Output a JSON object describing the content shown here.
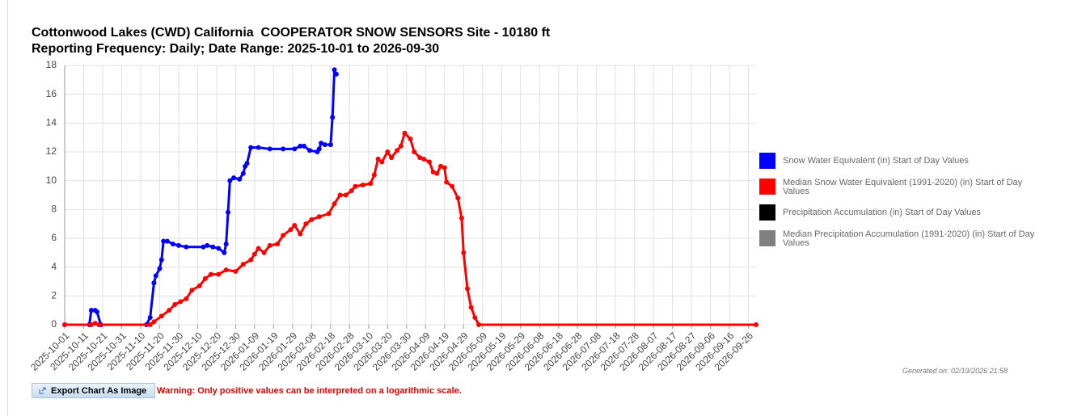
{
  "chart_data": {
    "type": "line",
    "title": "Cottonwood Lakes (CWD) California  COOPERATOR SNOW SENSORS Site - 10180 ft",
    "subtitle": "Reporting Frequency: Daily; Date Range: 2025-10-01 to 2026-09-30",
    "xlim": [
      "2025-10-01",
      "2026-09-30"
    ],
    "xticks": [
      "2025-10-01",
      "2025-10-11",
      "2025-10-21",
      "2025-10-31",
      "2025-11-10",
      "2025-11-20",
      "2025-11-30",
      "2025-12-10",
      "2025-12-20",
      "2025-12-30",
      "2026-01-09",
      "2026-01-19",
      "2026-01-29",
      "2026-02-08",
      "2026-02-18",
      "2026-02-28",
      "2026-03-10",
      "2026-03-20",
      "2026-03-30",
      "2026-04-09",
      "2026-04-19",
      "2026-04-29",
      "2026-05-09",
      "2026-05-19",
      "2026-05-29",
      "2026-06-08",
      "2026-06-18",
      "2026-06-28",
      "2026-07-08",
      "2026-07-18",
      "2026-07-28",
      "2026-08-07",
      "2026-08-17",
      "2026-08-27",
      "2026-09-06",
      "2026-09-16",
      "2026-09-26"
    ],
    "ylim": [
      0,
      18
    ],
    "yticks": [
      0,
      2,
      4,
      6,
      8,
      10,
      12,
      14,
      16,
      18
    ],
    "grid": true,
    "legend": "right",
    "series": [
      {
        "name": "Snow Water Equivalent (in) Start of Day Values",
        "color": "#0000ff",
        "x": [
          "2025-10-01",
          "2025-10-14",
          "2025-10-15",
          "2025-10-17",
          "2025-10-18",
          "2025-10-20",
          "2025-11-13",
          "2025-11-15",
          "2025-11-17",
          "2025-11-18",
          "2025-11-20",
          "2025-11-21",
          "2025-11-22",
          "2025-11-24",
          "2025-11-27",
          "2025-11-30",
          "2025-12-04",
          "2025-12-13",
          "2025-12-15",
          "2025-12-18",
          "2025-12-21",
          "2025-12-24",
          "2025-12-25",
          "2025-12-26",
          "2025-12-27",
          "2025-12-29",
          "2026-01-01",
          "2026-01-03",
          "2026-01-04",
          "2026-01-05",
          "2026-01-07",
          "2026-01-11",
          "2026-01-17",
          "2026-01-24",
          "2026-01-30",
          "2026-02-02",
          "2026-02-04",
          "2026-02-07",
          "2026-02-11",
          "2026-02-12",
          "2026-02-13",
          "2026-02-15",
          "2026-02-18",
          "2026-02-19",
          "2026-02-20",
          "2026-02-21"
        ],
        "values": [
          0,
          0,
          1.0,
          1.0,
          0.9,
          0,
          0,
          0.5,
          2.9,
          3.4,
          3.9,
          4.5,
          5.8,
          5.8,
          5.6,
          5.5,
          5.4,
          5.4,
          5.5,
          5.4,
          5.3,
          5.0,
          5.6,
          7.8,
          10.0,
          10.2,
          10.1,
          10.5,
          11.0,
          11.2,
          12.3,
          12.3,
          12.2,
          12.2,
          12.2,
          12.4,
          12.4,
          12.1,
          12.0,
          12.2,
          12.6,
          12.5,
          12.5,
          14.4,
          17.7,
          17.4
        ]
      },
      {
        "name": "Median Snow Water Equivalent (1991-2020) (in) Start of Day Values",
        "color": "#ff0000",
        "x": [
          "2025-10-01",
          "2025-10-15",
          "2025-10-17",
          "2025-10-19",
          "2025-11-15",
          "2025-11-17",
          "2025-11-21",
          "2025-11-25",
          "2025-11-28",
          "2025-12-01",
          "2025-12-04",
          "2025-12-07",
          "2025-12-11",
          "2025-12-14",
          "2025-12-17",
          "2025-12-21",
          "2025-12-25",
          "2025-12-30",
          "2026-01-03",
          "2026-01-07",
          "2026-01-09",
          "2026-01-11",
          "2026-01-14",
          "2026-01-17",
          "2026-01-21",
          "2026-01-24",
          "2026-01-28",
          "2026-01-30",
          "2026-02-02",
          "2026-02-05",
          "2026-02-08",
          "2026-02-12",
          "2026-02-17",
          "2026-02-20",
          "2026-02-23",
          "2026-02-26",
          "2026-03-01",
          "2026-03-03",
          "2026-03-07",
          "2026-03-11",
          "2026-03-13",
          "2026-03-15",
          "2026-03-17",
          "2026-03-20",
          "2026-03-22",
          "2026-03-25",
          "2026-03-27",
          "2026-03-29",
          "2026-04-01",
          "2026-04-03",
          "2026-04-06",
          "2026-04-08",
          "2026-04-11",
          "2026-04-13",
          "2026-04-15",
          "2026-04-17",
          "2026-04-19",
          "2026-04-20",
          "2026-04-23",
          "2026-04-26",
          "2026-04-28",
          "2026-04-29",
          "2026-05-01",
          "2026-05-03",
          "2026-05-05",
          "2026-05-07",
          "2026-09-30"
        ],
        "values": [
          0,
          0,
          0.1,
          0,
          0,
          0.2,
          0.6,
          1.0,
          1.4,
          1.6,
          1.8,
          2.4,
          2.7,
          3.2,
          3.5,
          3.5,
          3.8,
          3.7,
          4.2,
          4.5,
          4.9,
          5.3,
          5.0,
          5.5,
          5.6,
          6.2,
          6.6,
          6.9,
          6.3,
          7.0,
          7.3,
          7.5,
          7.7,
          8.4,
          9.0,
          9.0,
          9.3,
          9.6,
          9.7,
          9.8,
          10.4,
          11.5,
          11.3,
          12.0,
          11.6,
          12.1,
          12.4,
          13.3,
          12.9,
          12.0,
          11.6,
          11.5,
          11.3,
          10.6,
          10.5,
          11.0,
          10.9,
          9.9,
          9.6,
          8.8,
          7.4,
          5.0,
          2.5,
          1.2,
          0.5,
          0,
          0
        ]
      },
      {
        "name": "Precipitation Accumulation (in) Start of Day Values",
        "color": "#000000",
        "x": [],
        "values": []
      },
      {
        "name": "Median Precipitation Accumulation (1991-2020) (in) Start of Day Values",
        "color": "#808080",
        "x": [],
        "values": []
      }
    ]
  },
  "ui": {
    "generated": "Generated on: 02/19/2026 21:58",
    "export_button": "Export Chart As Image",
    "warning": "Warning: Only positive values can be interpreted on a logarithmic scale."
  }
}
